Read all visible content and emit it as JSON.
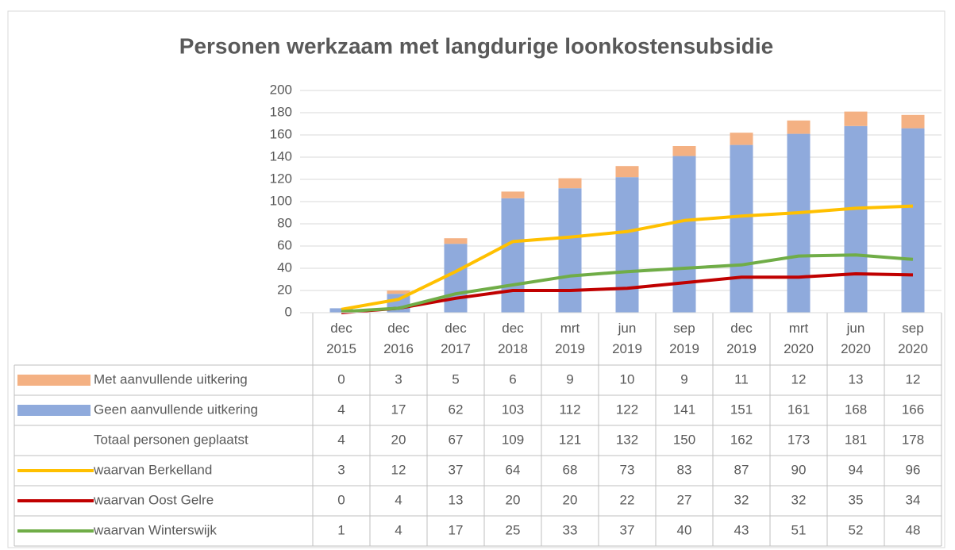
{
  "chart_data": {
    "type": "bar",
    "title": "Personen werkzaam met langdurige loonkostensubsidie",
    "categories": [
      "dec 2015",
      "dec 2016",
      "dec 2017",
      "dec 2018",
      "mrt 2019",
      "jun 2019",
      "sep 2019",
      "dec 2019",
      "mrt 2020",
      "jun 2020",
      "sep 2020"
    ],
    "series": [
      {
        "name": "Met aanvullende uitkering",
        "type": "bar",
        "color": "#f4b183",
        "values": [
          0,
          3,
          5,
          6,
          9,
          10,
          9,
          11,
          12,
          13,
          12
        ]
      },
      {
        "name": "Geen aanvullende uitkering",
        "type": "bar",
        "color": "#8faadc",
        "values": [
          4,
          17,
          62,
          103,
          112,
          122,
          141,
          151,
          161,
          168,
          166
        ]
      },
      {
        "name": "Totaal personen geplaatst",
        "values": [
          4,
          20,
          67,
          109,
          121,
          132,
          150,
          162,
          173,
          181,
          178
        ]
      },
      {
        "name": "waarvan Berkelland",
        "type": "line",
        "color": "#ffc000",
        "values": [
          3,
          12,
          37,
          64,
          68,
          73,
          83,
          87,
          90,
          94,
          96
        ]
      },
      {
        "name": "waarvan Oost Gelre",
        "type": "line",
        "color": "#c00000",
        "values": [
          0,
          4,
          13,
          20,
          20,
          22,
          27,
          32,
          32,
          35,
          34
        ]
      },
      {
        "name": "waarvan Winterswijk",
        "type": "line",
        "color": "#70ad47",
        "values": [
          1,
          4,
          17,
          25,
          33,
          37,
          40,
          43,
          51,
          52,
          48
        ]
      }
    ],
    "ylim": [
      0,
      200
    ],
    "yticks": [
      0,
      20,
      40,
      60,
      80,
      100,
      120,
      140,
      160,
      180,
      200
    ],
    "grid": true
  }
}
